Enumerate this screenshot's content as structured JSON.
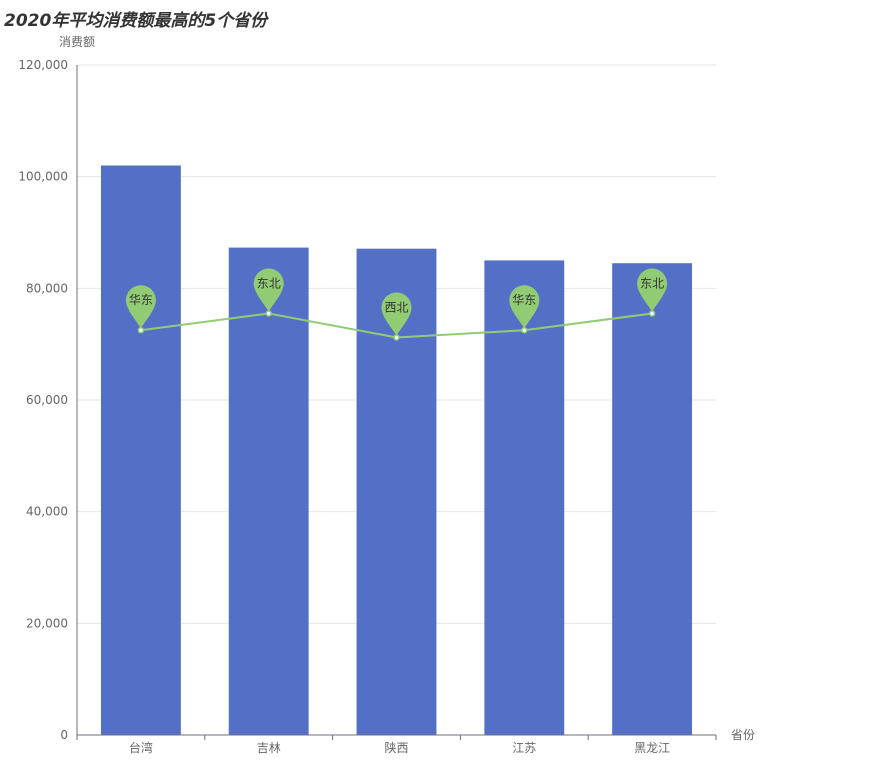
{
  "chart_data": {
    "type": "bar",
    "title": "2020年平均消费额最高的5个省份",
    "xlabel": "省份",
    "ylabel": "消费额",
    "categories": [
      "台湾",
      "吉林",
      "陕西",
      "江苏",
      "黑龙江"
    ],
    "series": [
      {
        "type": "bar",
        "values": [
          102000,
          87300,
          87100,
          85000,
          84500
        ],
        "color": "#5470c6"
      },
      {
        "type": "line",
        "values": [
          72500,
          75500,
          71200,
          72500,
          75500
        ],
        "color": "#91cc75",
        "labels": [
          "华东",
          "东北",
          "西北",
          "华东",
          "东北"
        ]
      }
    ],
    "ylim": [
      0,
      120000
    ],
    "yticks": [
      0,
      20000,
      40000,
      60000,
      80000,
      100000,
      120000
    ],
    "ytick_labels": [
      "0",
      "20,000",
      "40,000",
      "60,000",
      "80,000",
      "100,000",
      "120,000"
    ],
    "grid": true,
    "legend": "none"
  }
}
